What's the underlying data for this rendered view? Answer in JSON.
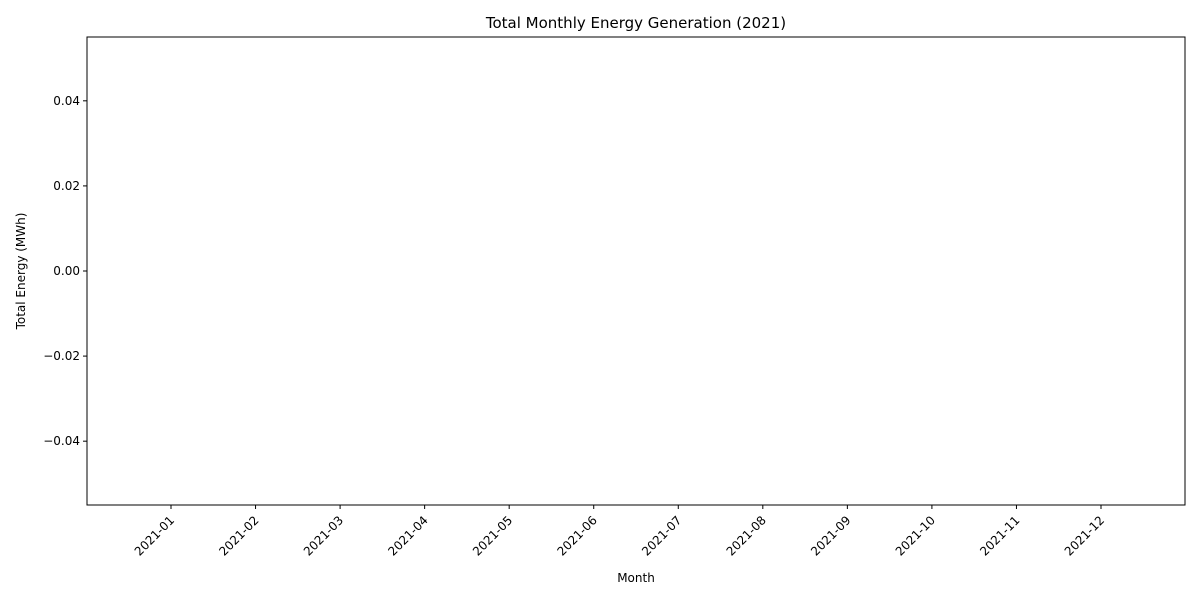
{
  "chart_data": {
    "type": "bar",
    "title": "Total Monthly Energy Generation (2021)",
    "xlabel": "Month",
    "ylabel": "Total Energy (MWh)",
    "categories": [
      "2021-01",
      "2021-02",
      "2021-03",
      "2021-04",
      "2021-05",
      "2021-06",
      "2021-07",
      "2021-08",
      "2021-09",
      "2021-10",
      "2021-11",
      "2021-12"
    ],
    "values": [
      0,
      0,
      0,
      0,
      0,
      0,
      0,
      0,
      0,
      0,
      0,
      0
    ],
    "ylim": [
      -0.055,
      0.055
    ],
    "yticks": [
      "−0.04",
      "−0.02",
      "0.00",
      "0.02",
      "0.04"
    ],
    "ytick_values": [
      -0.04,
      -0.02,
      0.0,
      0.02,
      0.04
    ],
    "grid": false,
    "legend": "none",
    "colors": {
      "axis": "#000000",
      "bar": "#1f77b4"
    }
  }
}
